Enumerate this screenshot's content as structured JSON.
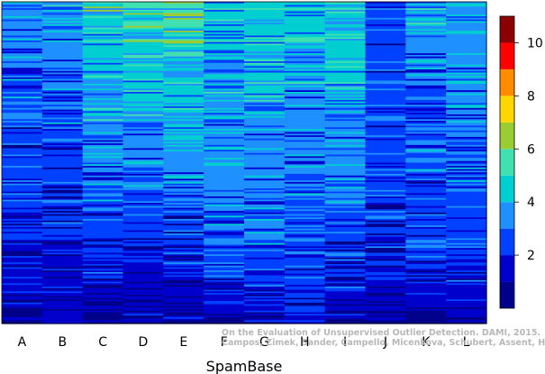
{
  "chart_data": {
    "type": "heatmap",
    "title": "",
    "xlabel": "SpamBase",
    "ylabel": "",
    "columns": [
      "A",
      "B",
      "C",
      "D",
      "E",
      "F",
      "G",
      "H",
      "I",
      "J",
      "K",
      "L"
    ],
    "rows_per_column": 200,
    "row_order": "observations sorted by score, lowest at bottom",
    "column_profiles": [
      {
        "column": "A",
        "top": 3.7,
        "upper": 2.8,
        "middle": 2.3,
        "lower": 1.7,
        "bottom": 1.0
      },
      {
        "column": "B",
        "top": 4.0,
        "upper": 3.0,
        "middle": 2.5,
        "lower": 1.8,
        "bottom": 1.0
      },
      {
        "column": "C",
        "top": 5.0,
        "upper": 4.0,
        "middle": 3.2,
        "lower": 2.1,
        "bottom": 1.0
      },
      {
        "column": "D",
        "top": 5.3,
        "upper": 4.1,
        "middle": 3.0,
        "lower": 1.9,
        "bottom": 0.9
      },
      {
        "column": "E",
        "top": 5.7,
        "upper": 4.5,
        "middle": 3.2,
        "lower": 2.0,
        "bottom": 0.9
      },
      {
        "column": "F",
        "top": 4.5,
        "upper": 3.8,
        "middle": 3.5,
        "lower": 2.9,
        "bottom": 1.0
      },
      {
        "column": "G",
        "top": 4.8,
        "upper": 3.9,
        "middle": 3.3,
        "lower": 2.7,
        "bottom": 1.0
      },
      {
        "column": "H",
        "top": 4.6,
        "upper": 3.6,
        "middle": 3.1,
        "lower": 2.6,
        "bottom": 1.8
      },
      {
        "column": "I",
        "top": 5.0,
        "upper": 4.1,
        "middle": 3.3,
        "lower": 2.4,
        "bottom": 1.0
      },
      {
        "column": "J",
        "top": 2.4,
        "upper": 2.6,
        "middle": 2.6,
        "lower": 2.1,
        "bottom": 1.0
      },
      {
        "column": "K",
        "top": 4.0,
        "upper": 3.0,
        "middle": 2.8,
        "lower": 2.3,
        "bottom": 1.0
      },
      {
        "column": "L",
        "top": 3.8,
        "upper": 3.3,
        "middle": 2.9,
        "lower": 2.3,
        "bottom": 1.0
      }
    ],
    "value_range": [
      0,
      11
    ],
    "colorbar": {
      "ticks": [
        2,
        4,
        6,
        8,
        10
      ],
      "levels": [
        {
          "from": 0,
          "to": 1,
          "color": "#00008b"
        },
        {
          "from": 1,
          "to": 2,
          "color": "#0000cd"
        },
        {
          "from": 2,
          "to": 3,
          "color": "#0040ff"
        },
        {
          "from": 3,
          "to": 4,
          "color": "#1e90ff"
        },
        {
          "from": 4,
          "to": 5,
          "color": "#00ced1"
        },
        {
          "from": 5,
          "to": 6,
          "color": "#40e0b0"
        },
        {
          "from": 6,
          "to": 7,
          "color": "#9acd32"
        },
        {
          "from": 7,
          "to": 8,
          "color": "#ffd700"
        },
        {
          "from": 8,
          "to": 9,
          "color": "#ff8c00"
        },
        {
          "from": 9,
          "to": 10,
          "color": "#ff0000"
        },
        {
          "from": 10,
          "to": 11,
          "color": "#8b0000"
        }
      ]
    },
    "grid": false,
    "legend": "right colorbar"
  },
  "credit": {
    "line1": "On the Evaluation of Unsupervised Outlier Detection. DAMI, 2015.",
    "line2": "Campos, Zimek, Sander, Campello, Micenkova, Schubert, Assent, Houle"
  }
}
